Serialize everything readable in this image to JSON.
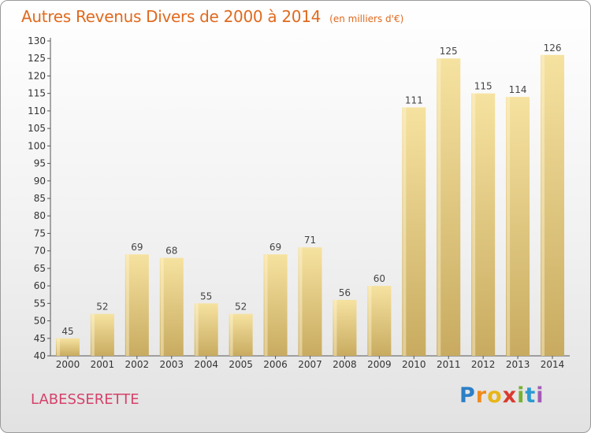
{
  "header": {
    "title": "Autres Revenus Divers de 2000 à 2014",
    "unit": "(en milliers d'€)"
  },
  "footer": {
    "town": "LABESSERETTE",
    "logo": [
      "P",
      "r",
      "o",
      "x",
      "i",
      "t",
      "i"
    ]
  },
  "colors": {
    "title": "#e06a1e",
    "town": "#d6416a",
    "bar_light": "#f6e2a0",
    "bar_dark": "#c8ab60"
  },
  "chart_data": {
    "type": "bar",
    "title": "Autres Revenus Divers de 2000 à 2014",
    "subtitle": "(en milliers d'€)",
    "categories": [
      "2000",
      "2001",
      "2002",
      "2003",
      "2004",
      "2005",
      "2006",
      "2007",
      "2008",
      "2009",
      "2010",
      "2011",
      "2012",
      "2013",
      "2014"
    ],
    "values": [
      45,
      52,
      69,
      68,
      55,
      52,
      69,
      71,
      56,
      60,
      111,
      125,
      115,
      114,
      126
    ],
    "ylim": [
      40,
      130
    ],
    "yticks": [
      40,
      45,
      50,
      55,
      60,
      65,
      70,
      75,
      80,
      85,
      90,
      95,
      100,
      105,
      110,
      115,
      120,
      125,
      130
    ],
    "grid": false,
    "data_labels": true
  }
}
